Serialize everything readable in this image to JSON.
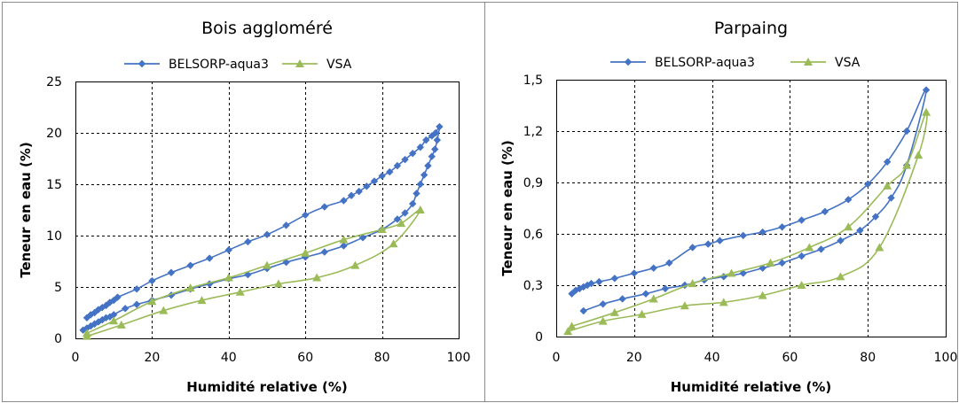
{
  "chart_data": [
    {
      "type": "line",
      "title": "Bois aggloméré",
      "xlabel": "Humidité relative (%)",
      "ylabel": "Teneur en eau (%)",
      "xlim": [
        0,
        100
      ],
      "ylim": [
        0,
        25
      ],
      "xticks": [
        0,
        20,
        40,
        60,
        80,
        100
      ],
      "yticks": [
        0,
        5,
        10,
        15,
        20,
        25
      ],
      "ytick_labels": [
        "0",
        "5",
        "10",
        "15",
        "20",
        "25"
      ],
      "grid": true,
      "legend": "top-center",
      "series": [
        {
          "name": "BELSORP-aqua3",
          "color": "#4472c4",
          "marker": "diamond",
          "values": [
            [
              2,
              0.8
            ],
            [
              3,
              1.0
            ],
            [
              4,
              1.2
            ],
            [
              5,
              1.4
            ],
            [
              6,
              1.6
            ],
            [
              7,
              1.8
            ],
            [
              8,
              2.0
            ],
            [
              9,
              2.1
            ],
            [
              10,
              2.3
            ],
            [
              13,
              2.9
            ],
            [
              16,
              3.3
            ],
            [
              20,
              3.7
            ],
            [
              25,
              4.2
            ],
            [
              30,
              4.8
            ],
            [
              35,
              5.3
            ],
            [
              40,
              5.8
            ],
            [
              45,
              6.2
            ],
            [
              50,
              6.8
            ],
            [
              55,
              7.4
            ],
            [
              60,
              7.9
            ],
            [
              65,
              8.4
            ],
            [
              70,
              9.0
            ],
            [
              75,
              9.8
            ],
            [
              80,
              10.6
            ],
            [
              84,
              11.6
            ],
            [
              86,
              12.2
            ],
            [
              88,
              13.1
            ],
            [
              89,
              14.1
            ],
            [
              90,
              15.0
            ],
            [
              91,
              15.9
            ],
            [
              92,
              16.8
            ],
            [
              93,
              17.7
            ],
            [
              93.8,
              18.4
            ],
            [
              94.4,
              19.3
            ],
            [
              95,
              20.6
            ],
            [
              94,
              20.0
            ],
            [
              93,
              19.7
            ],
            [
              91.5,
              19.3
            ],
            [
              90,
              18.6
            ],
            [
              88,
              18.0
            ],
            [
              86,
              17.4
            ],
            [
              84,
              16.8
            ],
            [
              82,
              16.2
            ],
            [
              80,
              15.8
            ],
            [
              78,
              15.3
            ],
            [
              76,
              14.8
            ],
            [
              74,
              14.3
            ],
            [
              72,
              13.9
            ],
            [
              70,
              13.4
            ],
            [
              65,
              12.8
            ],
            [
              60,
              12.0
            ],
            [
              55,
              11.0
            ],
            [
              50,
              10.1
            ],
            [
              45,
              9.4
            ],
            [
              40,
              8.6
            ],
            [
              35,
              7.8
            ],
            [
              30,
              7.1
            ],
            [
              25,
              6.4
            ],
            [
              20,
              5.6
            ],
            [
              16,
              4.8
            ],
            [
              11,
              4.0
            ],
            [
              10,
              3.7
            ],
            [
              9,
              3.5
            ],
            [
              8,
              3.2
            ],
            [
              7,
              3.0
            ],
            [
              6,
              2.8
            ],
            [
              5,
              2.5
            ],
            [
              4,
              2.3
            ],
            [
              3,
              2.0
            ]
          ]
        },
        {
          "name": "VSA",
          "color": "#9bbb59",
          "marker": "triangle",
          "values": [
            [
              3,
              0.2
            ],
            [
              12,
              1.3
            ],
            [
              23,
              2.7
            ],
            [
              33,
              3.7
            ],
            [
              43,
              4.5
            ],
            [
              53,
              5.3
            ],
            [
              63,
              5.9
            ],
            [
              73,
              7.1
            ],
            [
              83,
              9.2
            ],
            [
              90,
              12.5
            ],
            [
              85,
              11.2
            ],
            [
              80,
              10.6
            ],
            [
              70,
              9.6
            ],
            [
              60,
              8.3
            ],
            [
              50,
              7.1
            ],
            [
              40,
              5.9
            ],
            [
              30,
              4.9
            ],
            [
              20,
              3.6
            ],
            [
              10,
              1.7
            ],
            [
              3,
              0.5
            ]
          ]
        }
      ]
    },
    {
      "type": "line",
      "title": "Parpaing",
      "xlabel": "Humidité relative (%)",
      "ylabel": "Teneur en eau (%)",
      "xlim": [
        0,
        100
      ],
      "ylim": [
        0,
        1.5
      ],
      "xticks": [
        0,
        20,
        40,
        60,
        80,
        100
      ],
      "yticks": [
        0,
        0.3,
        0.6,
        0.9,
        1.2,
        1.5
      ],
      "ytick_labels": [
        "0",
        "0,3",
        "0,6",
        "0,9",
        "1,2",
        "1,5"
      ],
      "grid": true,
      "legend": "top-center",
      "series": [
        {
          "name": "BELSORP-aqua3",
          "color": "#4472c4",
          "marker": "diamond",
          "values": [
            [
              7,
              0.15
            ],
            [
              12,
              0.19
            ],
            [
              17,
              0.22
            ],
            [
              23,
              0.25
            ],
            [
              28,
              0.28
            ],
            [
              33,
              0.3
            ],
            [
              38,
              0.33
            ],
            [
              43,
              0.35
            ],
            [
              48,
              0.37
            ],
            [
              53,
              0.4
            ],
            [
              58,
              0.43
            ],
            [
              63,
              0.47
            ],
            [
              68,
              0.51
            ],
            [
              73,
              0.56
            ],
            [
              78,
              0.62
            ],
            [
              82,
              0.7
            ],
            [
              86,
              0.81
            ],
            [
              90,
              1.0
            ],
            [
              95,
              1.44
            ],
            [
              90,
              1.2
            ],
            [
              85,
              1.02
            ],
            [
              80,
              0.89
            ],
            [
              75,
              0.8
            ],
            [
              69,
              0.73
            ],
            [
              63,
              0.68
            ],
            [
              58,
              0.64
            ],
            [
              53,
              0.61
            ],
            [
              48,
              0.59
            ],
            [
              42,
              0.56
            ],
            [
              39,
              0.54
            ],
            [
              35,
              0.52
            ],
            [
              29,
              0.43
            ],
            [
              25,
              0.4
            ],
            [
              20,
              0.37
            ],
            [
              15,
              0.34
            ],
            [
              11,
              0.32
            ],
            [
              9,
              0.31
            ],
            [
              8,
              0.3
            ],
            [
              7,
              0.29
            ],
            [
              6,
              0.28
            ],
            [
              5,
              0.27
            ],
            [
              4,
              0.25
            ]
          ]
        },
        {
          "name": "VSA",
          "color": "#9bbb59",
          "marker": "triangle",
          "values": [
            [
              3,
              0.03
            ],
            [
              12,
              0.09
            ],
            [
              22,
              0.13
            ],
            [
              33,
              0.18
            ],
            [
              43,
              0.2
            ],
            [
              53,
              0.24
            ],
            [
              63,
              0.3
            ],
            [
              73,
              0.35
            ],
            [
              83,
              0.52
            ],
            [
              93,
              1.06
            ],
            [
              95,
              1.31
            ],
            [
              90,
              1.0
            ],
            [
              85,
              0.88
            ],
            [
              75,
              0.64
            ],
            [
              65,
              0.52
            ],
            [
              55,
              0.43
            ],
            [
              45,
              0.37
            ],
            [
              35,
              0.31
            ],
            [
              25,
              0.22
            ],
            [
              15,
              0.14
            ],
            [
              4,
              0.06
            ]
          ]
        }
      ]
    }
  ]
}
